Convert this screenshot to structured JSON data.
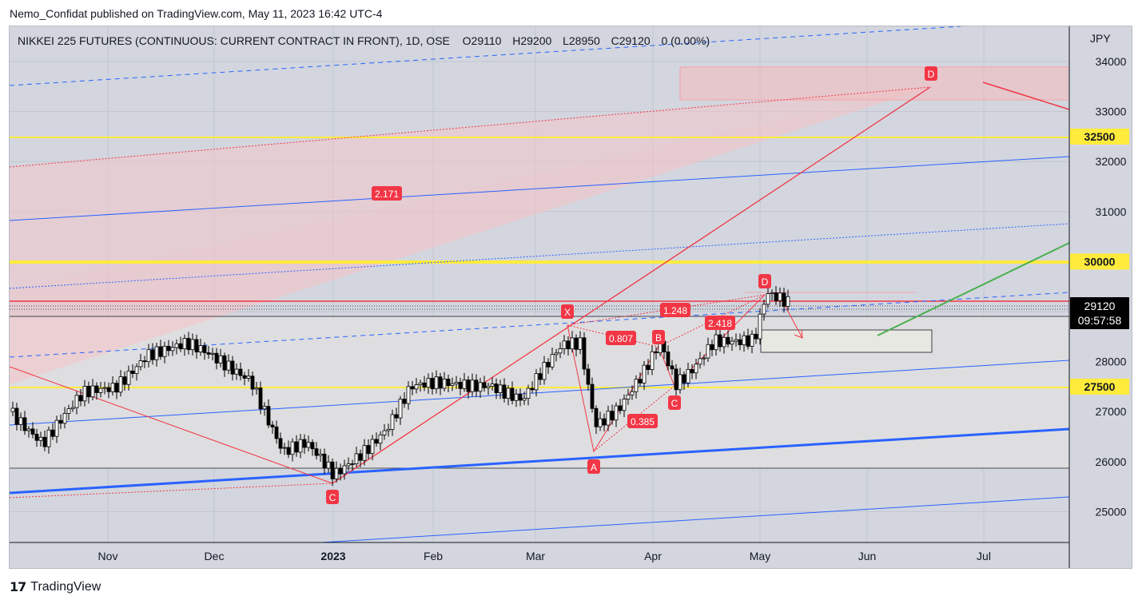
{
  "publisher_line": "Nemo_Confidat published on TradingView.com, May 11, 2023 16:42 UTC-4",
  "symbol": {
    "name": "NIKKEI 225 FUTURES (CONTINUOUS: CURRENT CONTRACT IN FRONT), 1D, OSE",
    "open_label": "O",
    "open": "29110",
    "high_label": "H",
    "high": "29200",
    "low_label": "L",
    "low": "28950",
    "close_label": "C",
    "close": "29120",
    "change": "0 (0.00%)"
  },
  "currency": "JPY",
  "price_axis": [
    "34000",
    "33000",
    "32000",
    "31000",
    "30000",
    "29000",
    "28000",
    "27000",
    "26000",
    "25000"
  ],
  "time_axis": [
    {
      "label": "Nov",
      "bold": false
    },
    {
      "label": "Dec",
      "bold": false
    },
    {
      "label": "2023",
      "bold": true
    },
    {
      "label": "Feb",
      "bold": false
    },
    {
      "label": "Mar",
      "bold": false
    },
    {
      "label": "Apr",
      "bold": false
    },
    {
      "label": "May",
      "bold": false
    },
    {
      "label": "Jun",
      "bold": false
    },
    {
      "label": "Jul",
      "bold": false
    }
  ],
  "level_badges": [
    {
      "value": "32500",
      "color": "#ffeb3b"
    },
    {
      "value": "30000",
      "color": "#ffeb3b"
    },
    {
      "value": "27500",
      "color": "#ffeb3b"
    }
  ],
  "last_price": {
    "value": "29120",
    "countdown": "09:57:58"
  },
  "pattern_labels": {
    "x": "X",
    "a": "A",
    "b": "B",
    "c": "C",
    "d": "D",
    "c_prev": "C",
    "d_target": "D",
    "ratio_2171": "2.171",
    "ratio_1248": "1.248",
    "ratio_0807": "0.807",
    "ratio_2418": "2.418",
    "ratio_0385": "0.385"
  },
  "colors": {
    "background": "#d3d6de",
    "grid": "#c2c6ce",
    "bull": "#ffffff",
    "bear": "#000000",
    "pattern_red": "#f23645",
    "pattern_fill": "#f8c7cb",
    "yellow": "#ffeb3b",
    "blue": "#2962ff",
    "green": "#4caf50"
  },
  "footer": {
    "brand": "TradingView",
    "logo_icon": "tradingview-logo-icon"
  }
}
